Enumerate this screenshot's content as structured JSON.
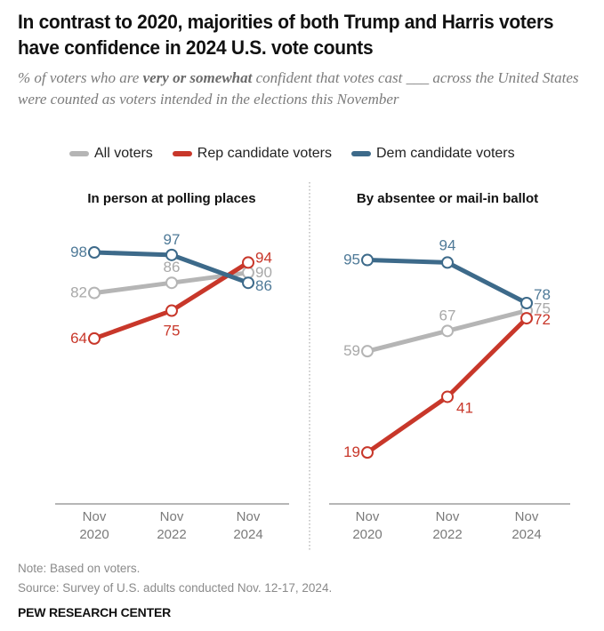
{
  "title": "In contrast to 2020, majorities of both Trump and Harris voters have confidence in 2024 U.S. vote counts",
  "subtitle": {
    "pre": "% of voters who are ",
    "bold": "very or somewhat",
    "post": " confident that votes cast ___ across the United States were counted as voters intended in the elections this November"
  },
  "legend": [
    {
      "label": "All voters",
      "color": "#b5b5b5"
    },
    {
      "label": "Rep candidate voters",
      "color": "#c8372a"
    },
    {
      "label": "Dem candidate voters",
      "color": "#3d6a8a"
    }
  ],
  "note": "Note: Based on voters.",
  "source": "Source: Survey of U.S. adults conducted Nov. 12-17, 2024.",
  "brand": "PEW RESEARCH CENTER",
  "chart_data": [
    {
      "type": "line",
      "title": "In person at polling places",
      "categories": [
        "Nov 2020",
        "Nov 2022",
        "Nov 2024"
      ],
      "series": [
        {
          "name": "All voters",
          "values": [
            82,
            86,
            90
          ],
          "color": "#b5b5b5",
          "label_color": "#a8a8a8"
        },
        {
          "name": "Rep candidate voters",
          "values": [
            64,
            75,
            94
          ],
          "color": "#c8372a",
          "label_color": "#c8372a"
        },
        {
          "name": "Dem candidate voters",
          "values": [
            98,
            97,
            86
          ],
          "color": "#3d6a8a",
          "label_color": "#4f7a98"
        }
      ]
    },
    {
      "type": "line",
      "title": "By absentee or mail-in ballot",
      "categories": [
        "Nov 2020",
        "Nov 2022",
        "Nov 2024"
      ],
      "series": [
        {
          "name": "All voters",
          "values": [
            59,
            67,
            75
          ],
          "color": "#b5b5b5",
          "label_color": "#a8a8a8"
        },
        {
          "name": "Rep candidate voters",
          "values": [
            19,
            41,
            72
          ],
          "color": "#c8372a",
          "label_color": "#c8372a"
        },
        {
          "name": "Dem candidate voters",
          "values": [
            95,
            94,
            78
          ],
          "color": "#3d6a8a",
          "label_color": "#4f7a98"
        }
      ]
    }
  ]
}
